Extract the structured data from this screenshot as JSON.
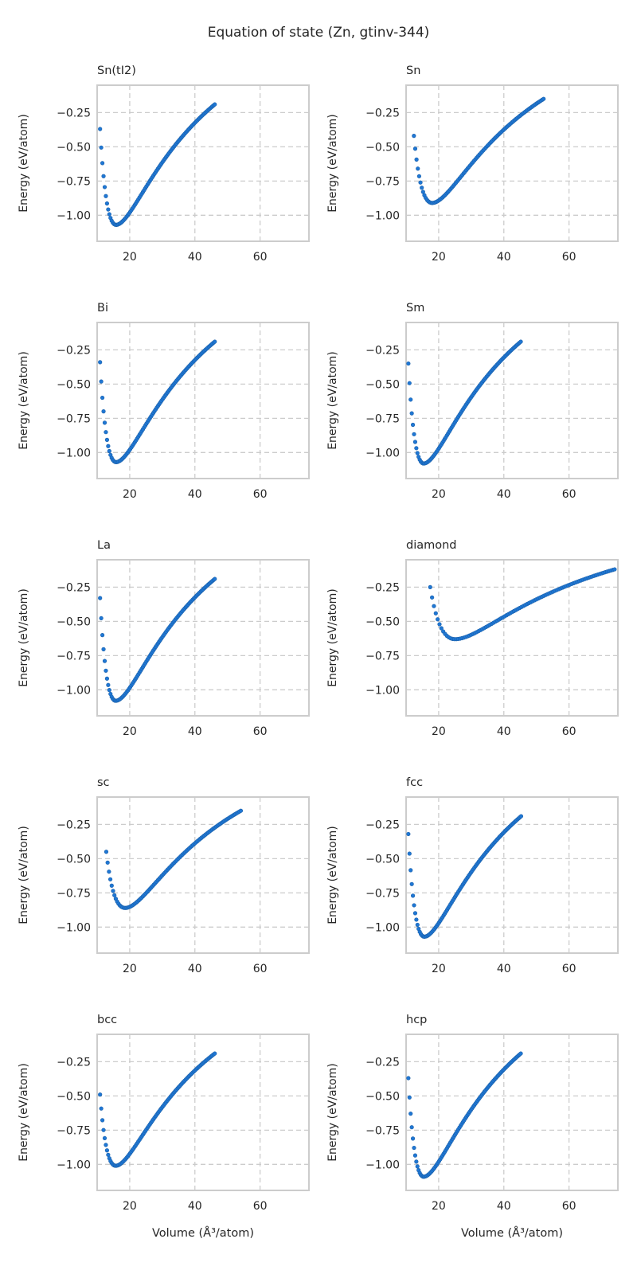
{
  "figure": {
    "title": "Equation of state (Zn, gtinv-344)"
  },
  "style": {
    "point_color": "#1f77d4",
    "point_edge": "#1a5fa8",
    "grid_color": "#cccccc",
    "frame_color": "#cccccc",
    "grid": "dashed"
  },
  "chart_data": [
    {
      "type": "scatter",
      "title": "Sn(tI2)",
      "ylabel": "Energy (eV/atom)",
      "xlabel": "",
      "xlim": [
        10,
        75
      ],
      "ylim": [
        -1.19,
        -0.05
      ],
      "x_ticks": [
        20,
        40,
        60
      ],
      "x_tick_labels": [
        "20",
        "40",
        "60"
      ],
      "y_ticks": [
        -0.25,
        -0.5,
        -0.75,
        -1.0
      ],
      "y_tick_labels": [
        "−0.25",
        "−0.50",
        "−0.75",
        "−1.00"
      ],
      "curve": {
        "vmin": 10.9,
        "v0": 15.8,
        "vmax": 46.1,
        "emin": -1.07,
        "e_start": -0.37,
        "e_end": -0.19,
        "n": 100
      }
    },
    {
      "type": "scatter",
      "title": "Sn",
      "ylabel": "Energy (eV/atom)",
      "xlabel": "",
      "xlim": [
        10,
        75
      ],
      "ylim": [
        -1.19,
        -0.05
      ],
      "x_ticks": [
        20,
        40,
        60
      ],
      "x_tick_labels": [
        "20",
        "40",
        "60"
      ],
      "y_ticks": [
        -0.25,
        -0.5,
        -0.75,
        -1.0
      ],
      "y_tick_labels": [
        "−0.25",
        "−0.50",
        "−0.75",
        "−1.00"
      ],
      "curve": {
        "vmin": 12.4,
        "v0": 18.0,
        "vmax": 52.2,
        "emin": -0.91,
        "e_start": -0.42,
        "e_end": -0.15,
        "n": 100
      }
    },
    {
      "type": "scatter",
      "title": "Bi",
      "ylabel": "Energy (eV/atom)",
      "xlabel": "",
      "xlim": [
        10,
        75
      ],
      "ylim": [
        -1.19,
        -0.05
      ],
      "x_ticks": [
        20,
        40,
        60
      ],
      "x_tick_labels": [
        "20",
        "40",
        "60"
      ],
      "y_ticks": [
        -0.25,
        -0.5,
        -0.75,
        -1.0
      ],
      "y_tick_labels": [
        "−0.25",
        "−0.50",
        "−0.75",
        "−1.00"
      ],
      "curve": {
        "vmin": 10.9,
        "v0": 15.8,
        "vmax": 46.1,
        "emin": -1.07,
        "e_start": -0.34,
        "e_end": -0.19,
        "n": 100
      }
    },
    {
      "type": "scatter",
      "title": "Sm",
      "ylabel": "Energy (eV/atom)",
      "xlabel": "",
      "xlim": [
        10,
        75
      ],
      "ylim": [
        -1.19,
        -0.05
      ],
      "x_ticks": [
        20,
        40,
        60
      ],
      "x_tick_labels": [
        "20",
        "40",
        "60"
      ],
      "y_ticks": [
        -0.25,
        -0.5,
        -0.75,
        -1.0
      ],
      "y_tick_labels": [
        "−0.25",
        "−0.50",
        "−0.75",
        "−1.00"
      ],
      "curve": {
        "vmin": 10.7,
        "v0": 15.4,
        "vmax": 45.2,
        "emin": -1.08,
        "e_start": -0.35,
        "e_end": -0.19,
        "n": 100
      }
    },
    {
      "type": "scatter",
      "title": "La",
      "ylabel": "Energy (eV/atom)",
      "xlabel": "",
      "xlim": [
        10,
        75
      ],
      "ylim": [
        -1.19,
        -0.05
      ],
      "x_ticks": [
        20,
        40,
        60
      ],
      "x_tick_labels": [
        "20",
        "40",
        "60"
      ],
      "y_ticks": [
        -0.25,
        -0.5,
        -0.75,
        -1.0
      ],
      "y_tick_labels": [
        "−0.25",
        "−0.50",
        "−0.75",
        "−1.00"
      ],
      "curve": {
        "vmin": 10.9,
        "v0": 15.7,
        "vmax": 46.1,
        "emin": -1.08,
        "e_start": -0.33,
        "e_end": -0.19,
        "n": 100
      }
    },
    {
      "type": "scatter",
      "title": "diamond",
      "ylabel": "Energy (eV/atom)",
      "xlabel": "",
      "xlim": [
        10,
        75
      ],
      "ylim": [
        -1.19,
        -0.05
      ],
      "x_ticks": [
        20,
        40,
        60
      ],
      "x_tick_labels": [
        "20",
        "40",
        "60"
      ],
      "y_ticks": [
        -0.25,
        -0.5,
        -0.75,
        -1.0
      ],
      "y_tick_labels": [
        "−0.25",
        "−0.50",
        "−0.75",
        "−1.00"
      ],
      "curve": {
        "vmin": 17.4,
        "v0": 25.0,
        "vmax": 74.0,
        "emin": -0.63,
        "e_start": -0.25,
        "e_end": -0.12,
        "n": 100
      }
    },
    {
      "type": "scatter",
      "title": "sc",
      "ylabel": "Energy (eV/atom)",
      "xlabel": "",
      "xlim": [
        10,
        75
      ],
      "ylim": [
        -1.19,
        -0.05
      ],
      "x_ticks": [
        20,
        40,
        60
      ],
      "x_tick_labels": [
        "20",
        "40",
        "60"
      ],
      "y_ticks": [
        -0.25,
        -0.5,
        -0.75,
        -1.0
      ],
      "y_tick_labels": [
        "−0.25",
        "−0.50",
        "−0.75",
        "−1.00"
      ],
      "curve": {
        "vmin": 12.8,
        "v0": 18.6,
        "vmax": 54.1,
        "emin": -0.86,
        "e_start": -0.45,
        "e_end": -0.15,
        "n": 100
      }
    },
    {
      "type": "scatter",
      "title": "fcc",
      "ylabel": "Energy (eV/atom)",
      "xlabel": "",
      "xlim": [
        10,
        75
      ],
      "ylim": [
        -1.19,
        -0.05
      ],
      "x_ticks": [
        20,
        40,
        60
      ],
      "x_tick_labels": [
        "20",
        "40",
        "60"
      ],
      "y_ticks": [
        -0.25,
        -0.5,
        -0.75,
        -1.0
      ],
      "y_tick_labels": [
        "−0.25",
        "−0.50",
        "−0.75",
        "−1.00"
      ],
      "curve": {
        "vmin": 10.7,
        "v0": 15.6,
        "vmax": 45.3,
        "emin": -1.07,
        "e_start": -0.32,
        "e_end": -0.19,
        "n": 100
      }
    },
    {
      "type": "scatter",
      "title": "bcc",
      "ylabel": "Energy (eV/atom)",
      "xlabel": "Volume (Å³/atom)",
      "xlim": [
        10,
        75
      ],
      "ylim": [
        -1.19,
        -0.05
      ],
      "x_ticks": [
        20,
        40,
        60
      ],
      "x_tick_labels": [
        "20",
        "40",
        "60"
      ],
      "y_ticks": [
        -0.25,
        -0.5,
        -0.75,
        -1.0
      ],
      "y_tick_labels": [
        "−0.25",
        "−0.50",
        "−0.75",
        "−1.00"
      ],
      "curve": {
        "vmin": 10.9,
        "v0": 15.7,
        "vmax": 46.1,
        "emin": -1.01,
        "e_start": -0.49,
        "e_end": -0.19,
        "n": 100
      }
    },
    {
      "type": "scatter",
      "title": "hcp",
      "ylabel": "Energy (eV/atom)",
      "xlabel": "Volume (Å³/atom)",
      "xlim": [
        10,
        75
      ],
      "ylim": [
        -1.19,
        -0.05
      ],
      "x_ticks": [
        20,
        40,
        60
      ],
      "x_tick_labels": [
        "20",
        "40",
        "60"
      ],
      "y_ticks": [
        -0.25,
        -0.5,
        -0.75,
        -1.0
      ],
      "y_tick_labels": [
        "−0.25",
        "−0.50",
        "−0.75",
        "−1.00"
      ],
      "curve": {
        "vmin": 10.7,
        "v0": 15.4,
        "vmax": 45.2,
        "emin": -1.09,
        "e_start": -0.37,
        "e_end": -0.19,
        "n": 100
      }
    }
  ]
}
